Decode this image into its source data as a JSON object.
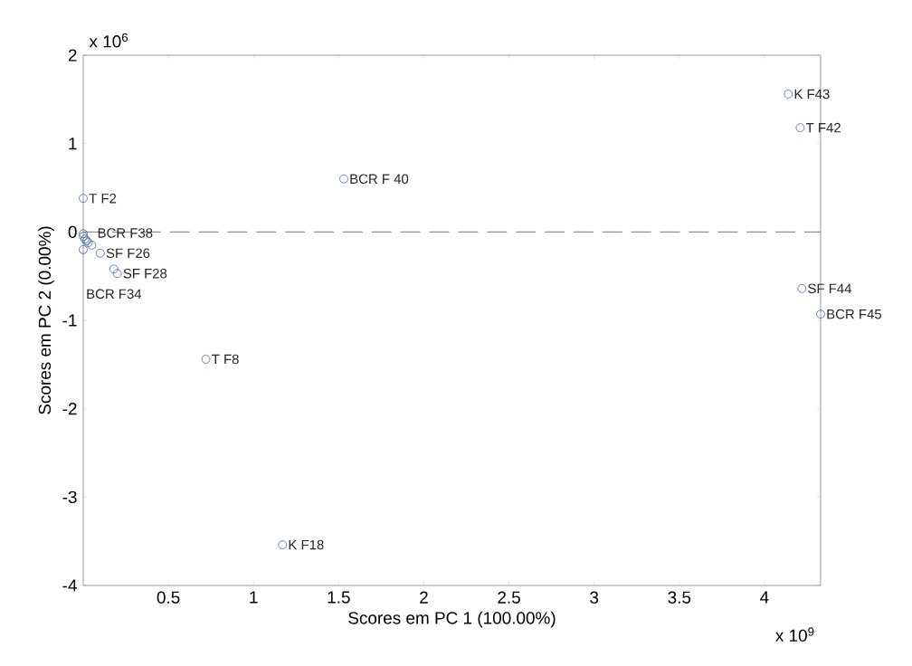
{
  "chart_data": {
    "type": "scatter",
    "xlabel": "Scores em PC 1 (100.00%)",
    "ylabel": "Scores em PC 2 (0.00%)",
    "xlim": [
      0,
      4.33
    ],
    "ylim": [
      -4,
      2
    ],
    "xticks": [
      0.5,
      1,
      1.5,
      2,
      2.5,
      3,
      3.5,
      4
    ],
    "yticks": [
      -4,
      -3,
      -2,
      -1,
      0,
      1,
      2
    ],
    "marker": "circle",
    "grid": false,
    "series": [
      {
        "color": "#2a52a8",
        "x": [
          4.14,
          4.21,
          1.53,
          0.0,
          4.22,
          4.33,
          0.72,
          1.17,
          0.18,
          0.2,
          0.1,
          0.05,
          0.0,
          0.0,
          0.01,
          0.02,
          0.0,
          0.03
        ],
        "values": [
          1.56,
          1.18,
          0.6,
          0.38,
          -0.64,
          -0.93,
          -1.44,
          -3.54,
          -0.42,
          -0.47,
          -0.24,
          -0.15,
          -0.02,
          -0.05,
          -0.08,
          -0.1,
          -0.2,
          -0.12
        ]
      }
    ],
    "ref_lines": [
      {
        "axis": "y",
        "value": 0,
        "color": "#555555",
        "line_style": "dashed"
      }
    ],
    "annotations": [
      "x 10$^{6}$",
      "x 10$^{9}$",
      {
        "text": "K F43",
        "x": 4.14,
        "y": 1.56
      },
      {
        "text": "T F42",
        "x": 4.21,
        "y": 1.18
      },
      {
        "text": "BCR F 40",
        "x": 1.53,
        "y": 0.6
      },
      {
        "text": "T F2",
        "x": 0.0,
        "y": 0.38
      },
      {
        "text": "SF F44",
        "x": 4.22,
        "y": -0.64
      },
      {
        "text": "BCR F45",
        "x": 4.33,
        "y": -0.93
      },
      {
        "text": "T F8",
        "x": 0.72,
        "y": -1.44
      },
      {
        "text": "K F18",
        "x": 1.17,
        "y": -3.54
      },
      {
        "text": "SF F28",
        "x": 0.2,
        "y": -0.47
      },
      {
        "text": "SF F26",
        "x": 0.1,
        "y": -0.24
      },
      {
        "text": "BCR F38",
        "x": 0.05,
        "y": -0.15
      },
      {
        "text": "BCR F34",
        "x": 0.18,
        "y": -0.42
      }
    ]
  }
}
